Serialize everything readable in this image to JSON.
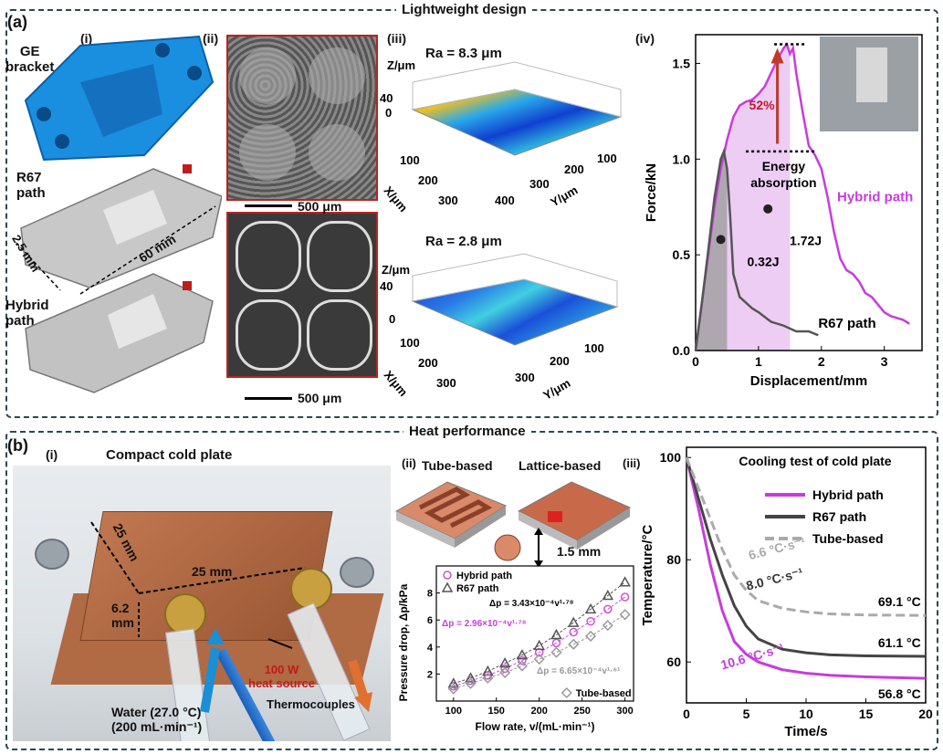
{
  "panel_a": {
    "label": "(a)",
    "section_title": "Lightweight design",
    "sub_i": "(i)",
    "sub_ii": "(ii)",
    "sub_iii": "(iii)",
    "sub_iv": "(iv)",
    "ge_bracket": "GE\nbracket",
    "r67_path": "R67\npath",
    "hybrid_path": "Hybrid\npath",
    "dim_60": "60 mm",
    "dim_25": "2.5 mm",
    "scale_top": "500 μm",
    "scale_bottom": "500 μm",
    "ra_top": "Ra = 8.3 μm",
    "ra_bottom": "Ra = 2.8 μm",
    "surf_top": {
      "zlabel": "Z/μm",
      "z40": "40",
      "z0": "0",
      "xlabel": "X/μm",
      "ylabel": "Y/μm",
      "x_ticks": [
        "100",
        "200",
        "300"
      ],
      "y_ticks": [
        "100",
        "200",
        "300",
        "400"
      ]
    },
    "surf_bottom": {
      "zlabel": "Z/μm",
      "z40": "40",
      "z0": "0",
      "xlabel": "X/μm",
      "ylabel": "Y/μm",
      "x_ticks": [
        "100",
        "200",
        "300"
      ],
      "y_ticks": [
        "100",
        "200",
        "300"
      ]
    }
  },
  "force_chart": {
    "chart_data": {
      "type": "line",
      "xlabel": "Displacement/mm",
      "ylabel": "Force/kN",
      "xlim": [
        0,
        3.6
      ],
      "ylim": [
        0,
        1.65
      ],
      "x_ticks": [
        0,
        1,
        2,
        3
      ],
      "y_ticks": [
        0.0,
        0.5,
        1.0,
        1.5
      ],
      "series": [
        {
          "name": "Hybrid path",
          "color": "#c83cdc",
          "x": [
            0,
            0.1,
            0.2,
            0.3,
            0.4,
            0.5,
            0.6,
            0.7,
            0.8,
            0.9,
            1.0,
            1.1,
            1.2,
            1.3,
            1.4,
            1.45,
            1.5,
            1.55,
            1.6,
            1.7,
            1.8,
            1.9,
            2.0,
            2.1,
            2.2,
            2.3,
            2.4,
            2.5,
            2.6,
            2.7,
            2.8,
            2.9,
            3.0,
            3.1,
            3.2,
            3.3,
            3.4
          ],
          "y": [
            0,
            0.25,
            0.5,
            0.75,
            0.95,
            1.1,
            1.22,
            1.28,
            1.3,
            1.31,
            1.34,
            1.38,
            1.45,
            1.52,
            1.58,
            1.6,
            1.55,
            1.58,
            1.45,
            1.25,
            1.07,
            1.02,
            0.95,
            0.8,
            0.62,
            0.48,
            0.42,
            0.4,
            0.36,
            0.3,
            0.28,
            0.24,
            0.2,
            0.18,
            0.17,
            0.16,
            0.14
          ]
        },
        {
          "name": "R67 path",
          "color": "#555555",
          "x": [
            0,
            0.1,
            0.2,
            0.3,
            0.4,
            0.45,
            0.5,
            0.55,
            0.6,
            0.7,
            0.8,
            0.9,
            1.0,
            1.2,
            1.4,
            1.6,
            1.8,
            1.95
          ],
          "y": [
            0,
            0.25,
            0.52,
            0.8,
            1.0,
            1.04,
            0.95,
            0.7,
            0.4,
            0.28,
            0.25,
            0.22,
            0.2,
            0.15,
            0.13,
            0.1,
            0.1,
            0.08
          ]
        }
      ],
      "annotations": [
        "52%",
        "Energy\nabsorption",
        "1.72J",
        "0.32J",
        "Hybrid path",
        "R67 path"
      ]
    }
  },
  "panel_b": {
    "label": "(b)",
    "section_title": "Heat performance",
    "sub_i": "(i)",
    "sub_ii": "(ii)",
    "sub_iii": "(iii)",
    "cold_plate_title": "Compact cold plate",
    "dim_25a": "25 mm",
    "dim_25b": "25 mm",
    "dim_62": "6.2\nmm",
    "heat_source": "100 W\nheat source",
    "thermocouples": "Thermocouples",
    "water": "Water (27.0 °C)\n(200 mL·min⁻¹)",
    "tube_based": "Tube-based",
    "lattice_based": "Lattice-based",
    "dim_15": "1.5 mm"
  },
  "pressure_chart": {
    "chart_data": {
      "type": "scatter",
      "xlabel": "Flow rate, v/(mL·min⁻¹)",
      "ylabel": "Pressure drop, Δp/kPa",
      "xlim": [
        80,
        310
      ],
      "ylim": [
        0,
        10
      ],
      "x_ticks": [
        100,
        150,
        200,
        250,
        300
      ],
      "y_ticks": [
        2,
        4,
        6,
        8
      ],
      "series": [
        {
          "name": "Hybrid path",
          "marker": "circle",
          "color": "#d050d8",
          "x": [
            100,
            120,
            140,
            160,
            180,
            200,
            220,
            240,
            260,
            280,
            300
          ],
          "y": [
            1.1,
            1.5,
            1.9,
            2.4,
            3.0,
            3.6,
            4.3,
            5.1,
            5.9,
            6.8,
            7.7
          ]
        },
        {
          "name": "R67 path",
          "marker": "triangle",
          "color": "#555555",
          "x": [
            100,
            120,
            140,
            160,
            180,
            200,
            220,
            240,
            260,
            280,
            300
          ],
          "y": [
            1.3,
            1.7,
            2.2,
            2.8,
            3.4,
            4.1,
            4.9,
            5.8,
            6.8,
            7.8,
            8.8
          ]
        },
        {
          "name": "Tube-based",
          "marker": "diamond",
          "color": "#999999",
          "x": [
            100,
            120,
            140,
            160,
            180,
            200,
            220,
            240,
            260,
            280,
            300
          ],
          "y": [
            0.9,
            1.3,
            1.7,
            2.1,
            2.6,
            3.1,
            3.6,
            4.2,
            4.8,
            5.6,
            6.4
          ]
        }
      ],
      "eq_r67": "Δp = 3.43×10⁻⁴v¹·⁷⁸",
      "eq_hybrid": "Δp = 2.96×10⁻⁴v¹·⁷⁸",
      "eq_tube": "Δp = 6.65×10⁻⁴v¹·⁶¹"
    }
  },
  "cooling_chart": {
    "chart_data": {
      "type": "line",
      "title": "Cooling test of cold plate",
      "xlabel": "Time/s",
      "ylabel": "Temperature/°C",
      "xlim": [
        0,
        20
      ],
      "ylim": [
        52,
        102
      ],
      "x_ticks": [
        0,
        5,
        10,
        15,
        20
      ],
      "y_ticks": [
        60,
        80,
        100
      ],
      "series": [
        {
          "name": "Hybrid path",
          "color": "#c83cdc",
          "dash": false,
          "x": [
            0,
            1,
            2,
            3,
            4,
            5,
            6,
            8,
            10,
            12,
            15,
            20
          ],
          "y": [
            100,
            90,
            79,
            70,
            64,
            61.5,
            60,
            58.5,
            57.8,
            57.4,
            57.1,
            56.8
          ]
        },
        {
          "name": "R67 path",
          "color": "#444444",
          "dash": false,
          "x": [
            0,
            1,
            2,
            3,
            4,
            5,
            6,
            8,
            10,
            12,
            15,
            20
          ],
          "y": [
            100,
            92,
            84,
            77,
            71,
            67,
            64.5,
            62.5,
            61.8,
            61.4,
            61.2,
            61.1
          ]
        },
        {
          "name": "Tube-based",
          "color": "#aaaaaa",
          "dash": true,
          "x": [
            0,
            1,
            2,
            3,
            4,
            5,
            6,
            8,
            10,
            12,
            15,
            20
          ],
          "y": [
            100,
            94,
            88,
            82,
            77,
            74,
            72,
            70.5,
            69.8,
            69.4,
            69.2,
            69.1
          ]
        }
      ],
      "rate_labels": [
        "6.6 °C·s⁻¹",
        "8.0 °C·s⁻¹",
        "10.6 °C·s⁻¹"
      ],
      "end_labels": [
        "69.1 °C",
        "61.1 °C",
        "56.8 °C"
      ]
    }
  }
}
